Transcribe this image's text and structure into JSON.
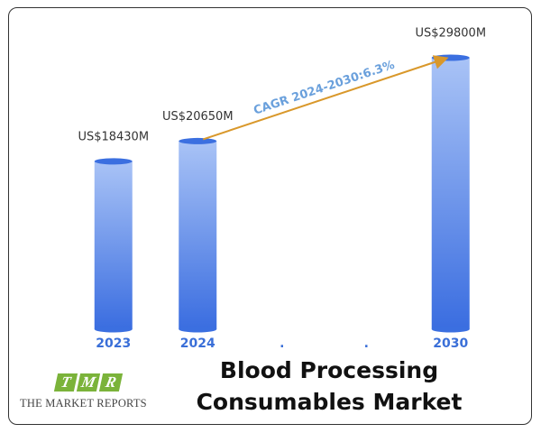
{
  "chart_data": {
    "type": "bar",
    "categories": [
      "2023",
      "2024",
      ".",
      ".",
      "2030"
    ],
    "values": [
      18430,
      20650,
      null,
      null,
      29800
    ],
    "value_labels": [
      "US$18430M",
      "US$20650M",
      null,
      null,
      "US$29800M"
    ],
    "annotation": "CAGR 2024-2030:6.3%",
    "color": "#3b6fe0"
  },
  "title": "Blood Processing Consumables Market",
  "logo": {
    "mark": [
      "T",
      "M",
      "R"
    ],
    "name": "THE MARKET REPORTS"
  }
}
